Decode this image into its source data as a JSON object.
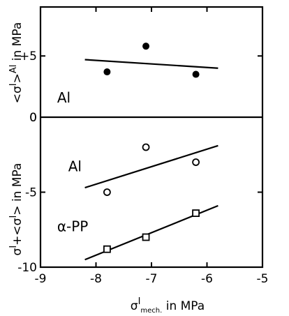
{
  "chart_data": [
    {
      "type": "scatter",
      "panel": "top",
      "ylabel_main": "<σ",
      "ylabel_sup": "I",
      "ylabel_after": ">",
      "ylabel_sup2": "Al",
      "ylabel_units": " in MPa",
      "ylim": [
        0,
        9
      ],
      "yticks": [
        0,
        5
      ],
      "ytick_labels": [
        "0",
        "+5"
      ],
      "annotations": [
        {
          "text": "Al",
          "x": -8.7,
          "y": 1.2
        }
      ],
      "series": [
        {
          "marker": "filled-circle",
          "points": [
            {
              "x": -7.8,
              "y": 3.7
            },
            {
              "x": -7.1,
              "y": 5.8
            },
            {
              "x": -6.2,
              "y": 3.5
            }
          ],
          "fit": [
            {
              "x": -8.2,
              "y": 4.7
            },
            {
              "x": -5.8,
              "y": 4.0
            }
          ]
        }
      ]
    },
    {
      "type": "scatter",
      "panel": "bottom",
      "ylabel_main": "σ",
      "ylabel_sup": "I",
      "ylabel_after": "+<σ",
      "ylabel_sup2": "I",
      "ylabel_end": ">",
      "ylabel_units": " in MPa",
      "ylim": [
        -10,
        0
      ],
      "yticks": [
        0,
        -5,
        -10
      ],
      "ytick_labels": [
        "0",
        "-5",
        "-10"
      ],
      "annotations": [
        {
          "text": "Al",
          "x": -8.5,
          "y": -3.6
        },
        {
          "text": "α-PP",
          "x": -8.7,
          "y": -7.6
        }
      ],
      "series": [
        {
          "name": "Al",
          "marker": "open-circle",
          "points": [
            {
              "x": -7.8,
              "y": -5.0
            },
            {
              "x": -7.1,
              "y": -2.0
            },
            {
              "x": -6.2,
              "y": -3.0
            }
          ],
          "fit": [
            {
              "x": -8.2,
              "y": -4.7
            },
            {
              "x": -5.8,
              "y": -1.9
            }
          ]
        },
        {
          "name": "α-PP",
          "marker": "open-square",
          "points": [
            {
              "x": -7.8,
              "y": -8.8
            },
            {
              "x": -7.1,
              "y": -8.0
            },
            {
              "x": -6.2,
              "y": -6.4
            }
          ],
          "fit": [
            {
              "x": -8.2,
              "y": -9.5
            },
            {
              "x": -5.8,
              "y": -5.9
            }
          ]
        }
      ]
    }
  ],
  "xaxis": {
    "xlim": [
      -9,
      -5
    ],
    "xticks": [
      -9,
      -8,
      -7,
      -6,
      -5
    ],
    "xtick_labels": [
      "-9",
      "-8",
      "-7",
      "-6",
      "-5"
    ],
    "label_main": "σ",
    "label_sup": "I",
    "label_sub": "mech.",
    "label_units": " in MPa"
  },
  "colors": {
    "ink": "#000000",
    "background": "#ffffff"
  }
}
